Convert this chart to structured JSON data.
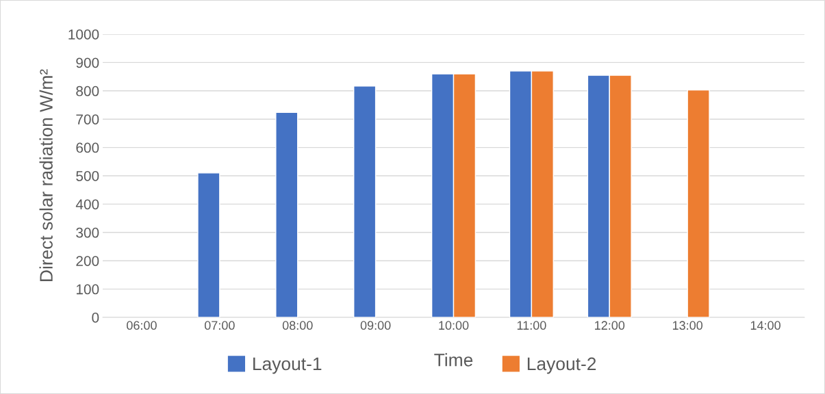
{
  "chart_data": {
    "type": "bar",
    "xlabel": "Time",
    "ylabel": "Direct solar radiation W/m²",
    "categories": [
      "06:00",
      "07:00",
      "08:00",
      "09:00",
      "10:00",
      "11:00",
      "12:00",
      "13:00",
      "14:00"
    ],
    "series": [
      {
        "name": "Layout-1",
        "color": "#4472c4",
        "values": [
          null,
          510,
          724,
          817,
          860,
          870,
          855,
          null,
          null
        ]
      },
      {
        "name": "Layout-2",
        "color": "#ed7d31",
        "values": [
          null,
          null,
          null,
          null,
          860,
          870,
          855,
          803,
          null
        ]
      }
    ],
    "ylim": [
      0,
      1000
    ],
    "yticks": [
      0,
      100,
      200,
      300,
      400,
      500,
      600,
      700,
      800,
      900,
      1000
    ],
    "grid": "y",
    "legend": "bottom"
  }
}
